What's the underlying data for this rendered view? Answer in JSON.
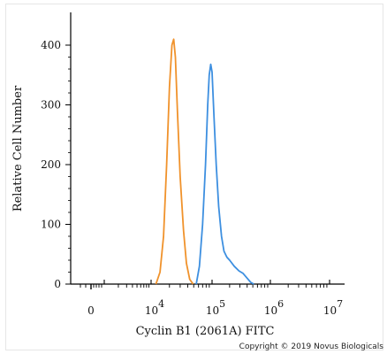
{
  "chart_data": {
    "type": "line",
    "xlabel": "Cyclin B1 (2061A) FITC",
    "ylabel": "Relative Cell Number",
    "xscale": "biexponential (linear near 0, log above 10^3)",
    "ylim": [
      0,
      420
    ],
    "y_ticks": [
      0,
      100,
      200,
      300,
      400
    ],
    "x_ticks": [
      {
        "value": 0,
        "base": "0",
        "exp": ""
      },
      {
        "value": 10000,
        "base": "10",
        "exp": "4"
      },
      {
        "value": 100000,
        "base": "10",
        "exp": "5"
      },
      {
        "value": 1000000,
        "base": "10",
        "exp": "6"
      },
      {
        "value": 10000000,
        "base": "10",
        "exp": "7"
      }
    ],
    "grid": false,
    "series": [
      {
        "color": "#F0922B",
        "x": [
          12000,
          14000,
          16000,
          18000,
          20000,
          22000,
          23500,
          25000,
          27000,
          30000,
          34000,
          38000,
          43000,
          49000
        ],
        "y": [
          0,
          20,
          80,
          200,
          330,
          400,
          410,
          380,
          290,
          180,
          90,
          35,
          8,
          0
        ]
      },
      {
        "color": "#3D8FE0",
        "x": [
          55000,
          62000,
          70000,
          78000,
          85000,
          90000,
          95000,
          100000,
          108000,
          118000,
          130000,
          145000,
          160000,
          180000,
          200000,
          240000,
          290000,
          340000,
          400000,
          460000,
          520000
        ],
        "y": [
          0,
          30,
          100,
          200,
          300,
          350,
          368,
          355,
          280,
          200,
          130,
          80,
          55,
          45,
          40,
          30,
          22,
          18,
          10,
          3,
          0
        ]
      }
    ]
  },
  "footer": {
    "copyright": "Copyright © 2019 Novus Biologicals"
  }
}
